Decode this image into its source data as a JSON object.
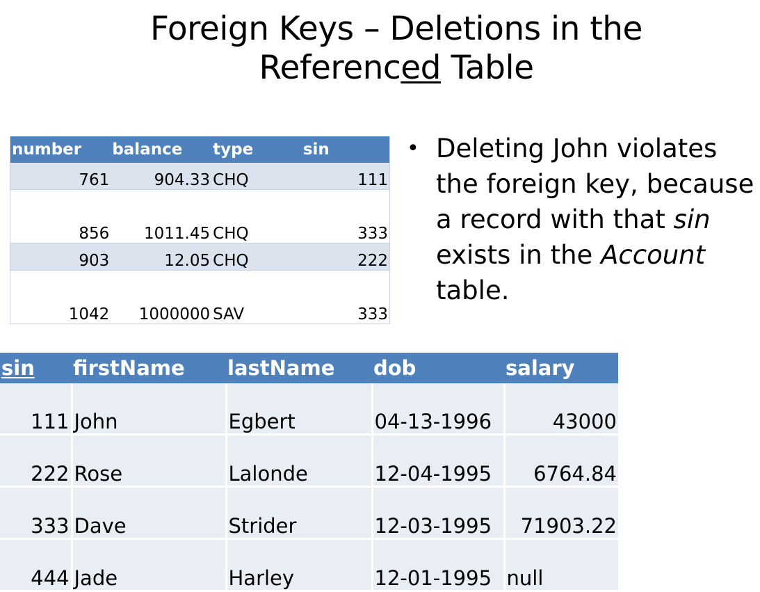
{
  "slide": {
    "title_line1": "Foreign Keys – Deletions in the",
    "title_line2_pre": "Referenc",
    "title_line2_underlined": "ed",
    "title_line2_post": " Table"
  },
  "account_table": {
    "headers": [
      "number",
      "balance",
      "type",
      "sin"
    ],
    "rows": [
      {
        "number": "761",
        "balance": "904.33",
        "type": "CHQ",
        "sin": "111"
      },
      {
        "number": "856",
        "balance": "1011.45",
        "type": "CHQ",
        "sin": "333"
      },
      {
        "number": "903",
        "balance": "12.05",
        "type": "CHQ",
        "sin": "222"
      },
      {
        "number": "1042",
        "balance": "1000000",
        "type": "SAV",
        "sin": "333"
      }
    ]
  },
  "person_table": {
    "headers": [
      "sin",
      "firstName",
      "lastName",
      "dob",
      "salary"
    ],
    "rows": [
      {
        "sin": "111",
        "firstName": "John",
        "lastName": "Egbert",
        "dob": "04-13-1996",
        "salary": "43000"
      },
      {
        "sin": "222",
        "firstName": "Rose",
        "lastName": "Lalonde",
        "dob": "12-04-1995",
        "salary": "6764.84"
      },
      {
        "sin": "333",
        "firstName": "Dave",
        "lastName": "Strider",
        "dob": "12-03-1995",
        "salary": "71903.22"
      },
      {
        "sin": "444",
        "firstName": "Jade",
        "lastName": "Harley",
        "dob": "12-01-1995",
        "salary": "null"
      }
    ]
  },
  "bullet": {
    "marker": "•",
    "part1": "Deleting John violates the foreign key, because a record with that ",
    "sin_word": "sin",
    "part2": " exists in the ",
    "account_word": "Account",
    "part3": " table."
  }
}
